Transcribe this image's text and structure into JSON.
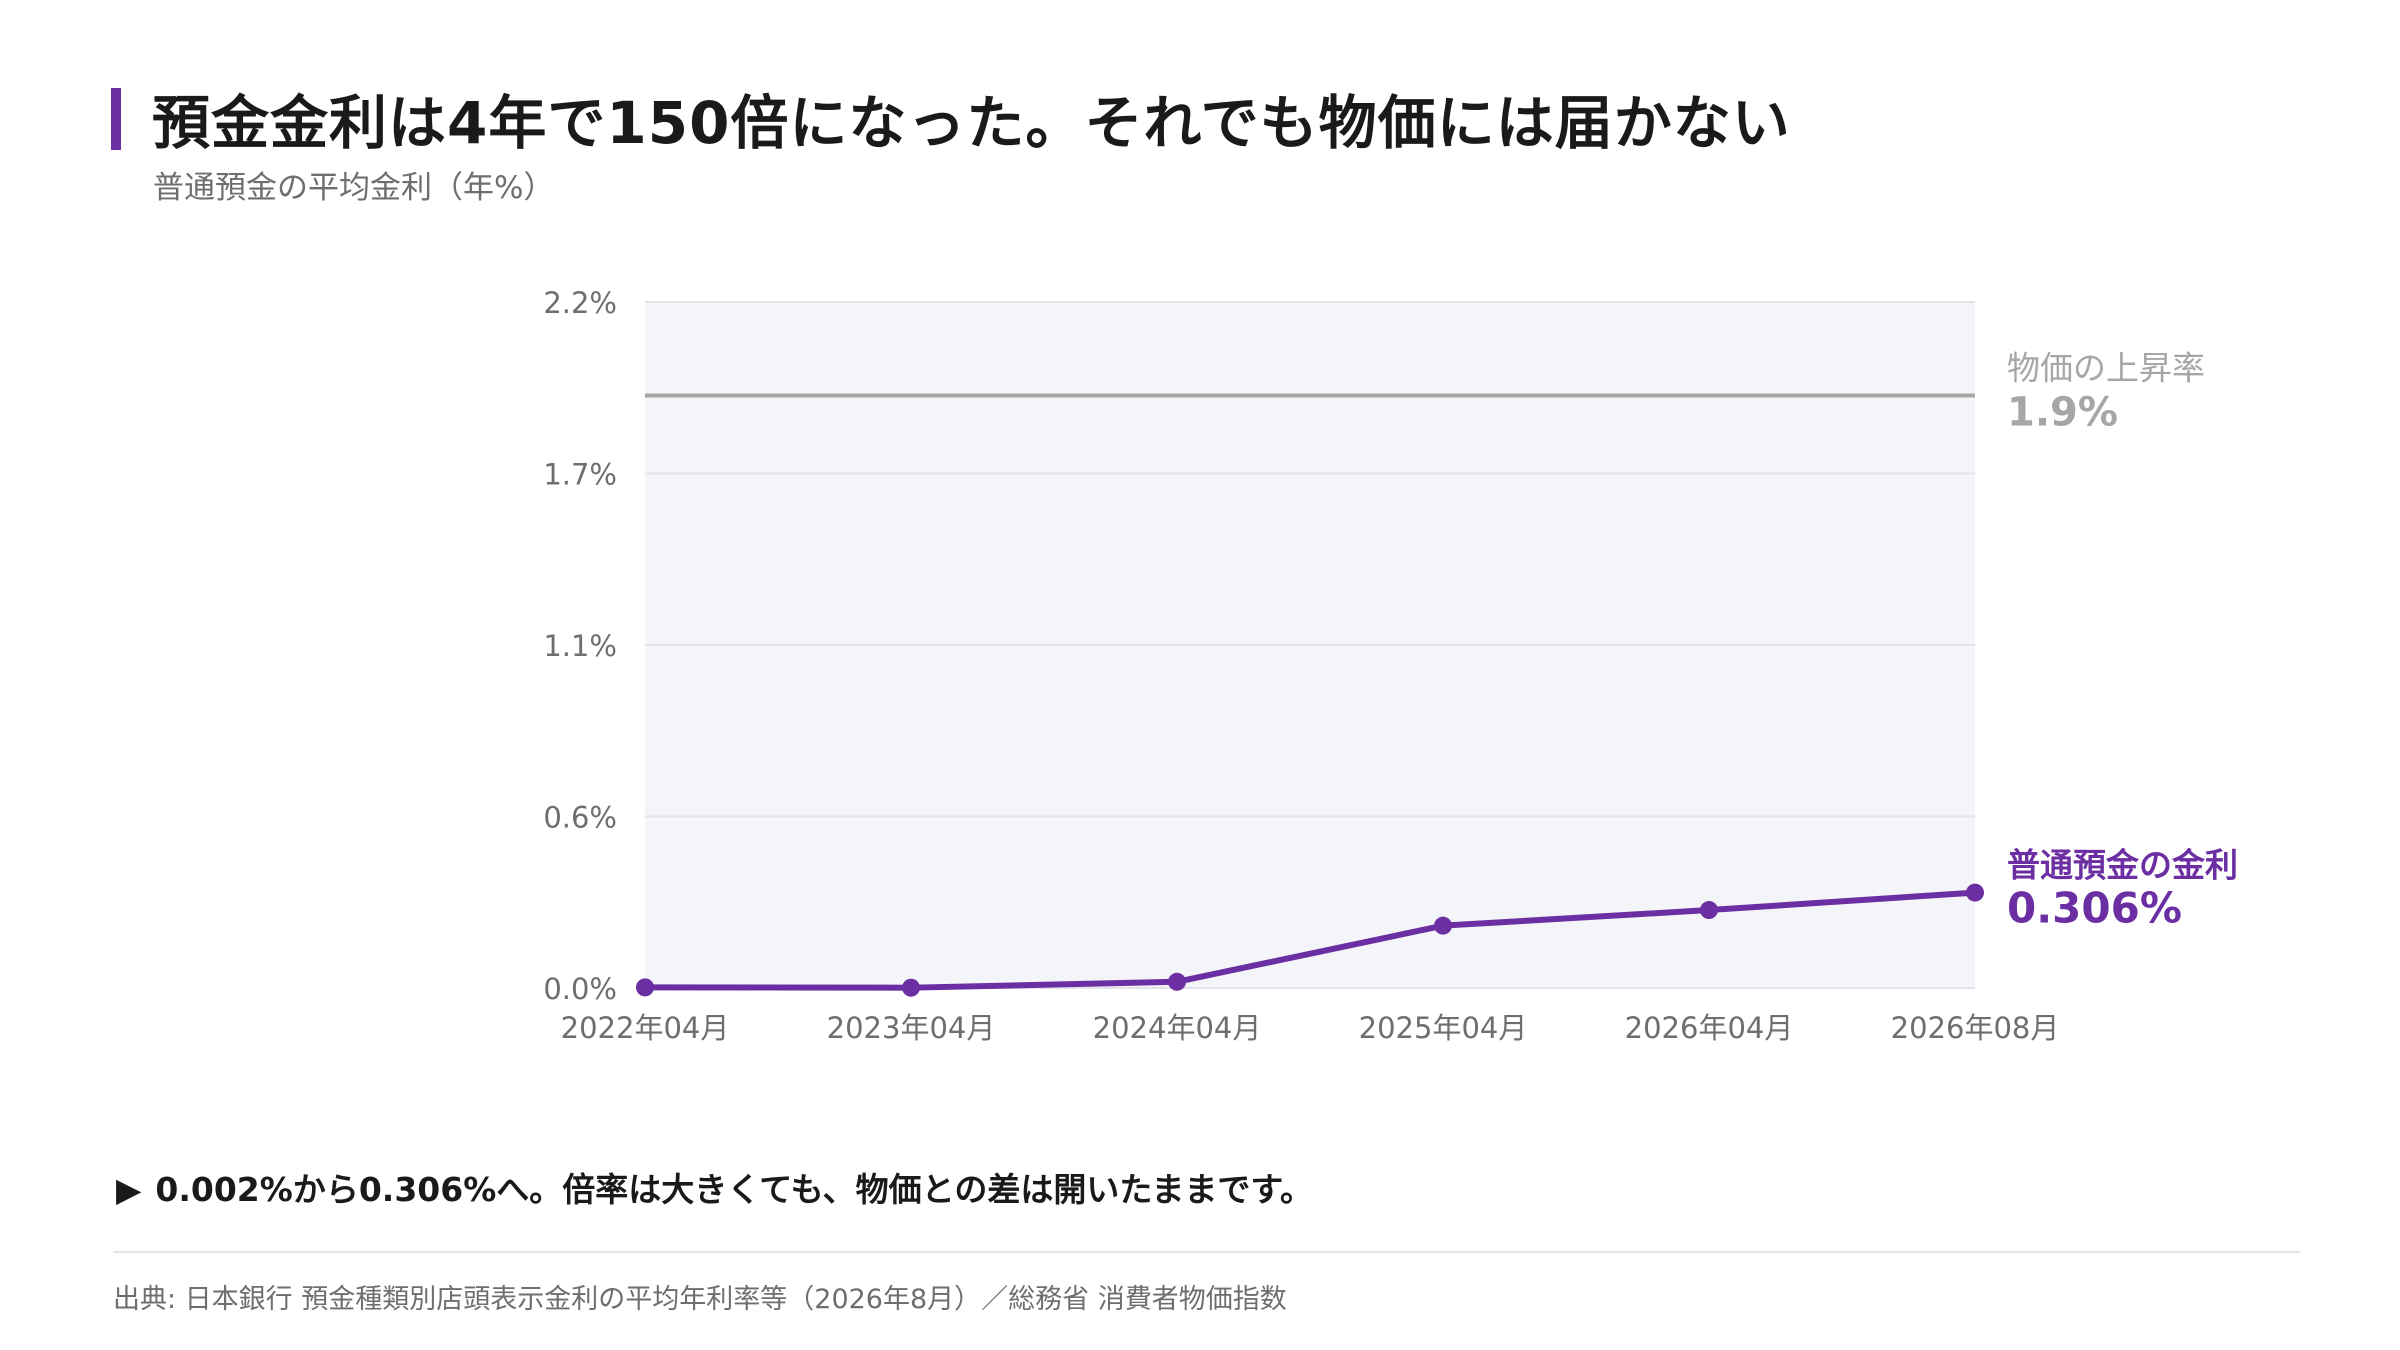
{
  "header": {
    "title": "預金金利は4年で150倍になった。それでも物価には届かない",
    "subtitle": "普通預金の平均金利（年%）"
  },
  "chart_data": {
    "type": "line",
    "x": [
      "2022年04月",
      "2023年04月",
      "2024年04月",
      "2025年04月",
      "2026年04月",
      "2026年08月"
    ],
    "series": [
      {
        "name": "普通預金の金利",
        "values": [
          0.002,
          0.001,
          0.02,
          0.2,
          0.25,
          0.306
        ],
        "color": "#6b2fa3",
        "end_label": "0.306%"
      }
    ],
    "reference_line": {
      "name": "物価の上昇率",
      "value": 1.9,
      "label": "1.9%",
      "color": "#a6a6a6"
    },
    "y_ticks": [
      0.0,
      0.55,
      1.1,
      1.65,
      2.2
    ],
    "y_tick_labels": [
      "0.0%",
      "0.6%",
      "1.1%",
      "1.7%",
      "2.2%"
    ],
    "ylim": [
      0,
      2.2
    ],
    "grid": true,
    "plot_background": "#f4f5f9"
  },
  "note": {
    "marker": "▶",
    "text": "0.002%から0.306%へ。倍率は大きくても、物価との差は開いたままです。"
  },
  "source": "出典: 日本銀行 預金種類別店頭表示金利の平均年利率等（2026年8月）／総務省 消費者物価指数",
  "colors": {
    "accent": "#6b2fa3",
    "reference": "#a6a6a6",
    "text": "#1a1a1a",
    "muted": "#6e6e6e"
  }
}
